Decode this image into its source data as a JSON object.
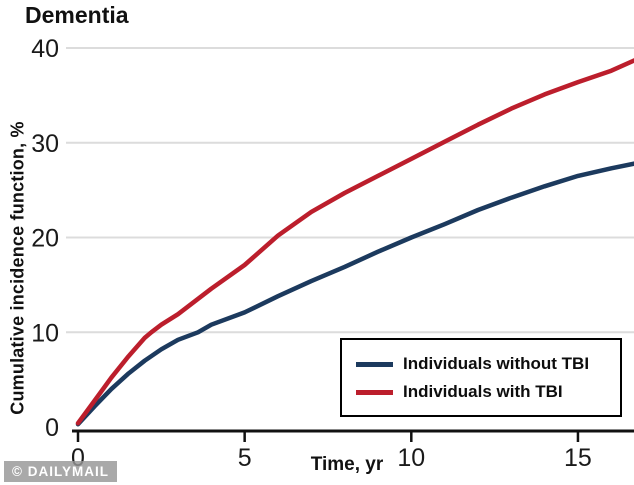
{
  "title": "Dementia",
  "watermark": "© DAILYMAIL",
  "axes": {
    "y_label": "Cumulative incidence function, %",
    "x_label": "Time, yr"
  },
  "legend": {
    "items": [
      {
        "label": "Individuals without TBI",
        "color": "#1c3a5e"
      },
      {
        "label": "Individuals with TBI",
        "color": "#bc1e2c"
      }
    ]
  },
  "colors": {
    "grid": "#dcdcdc",
    "axis": "#111111",
    "tick_text": "#1a1a1a",
    "background": "#ffffff"
  },
  "chart_data": {
    "type": "line",
    "title": "Dementia",
    "xlabel": "Time, yr",
    "ylabel": "Cumulative incidence function, %",
    "xlim": [
      0,
      16.7
    ],
    "ylim": [
      0,
      40
    ],
    "x_ticks": [
      0,
      5,
      10,
      15
    ],
    "y_ticks": [
      0,
      10,
      20,
      30,
      40
    ],
    "grid": "horizontal",
    "legend_position": "lower right",
    "series": [
      {
        "name": "Individuals without TBI",
        "color": "#1c3a5e",
        "points": [
          [
            0,
            0.3
          ],
          [
            0.5,
            2.2
          ],
          [
            1,
            4.0
          ],
          [
            1.5,
            5.6
          ],
          [
            2,
            7.0
          ],
          [
            2.5,
            8.2
          ],
          [
            3,
            9.2
          ],
          [
            3.6,
            10.0
          ],
          [
            4,
            10.8
          ],
          [
            5,
            12.1
          ],
          [
            6,
            13.8
          ],
          [
            7,
            15.4
          ],
          [
            8,
            16.9
          ],
          [
            9,
            18.5
          ],
          [
            10,
            20.0
          ],
          [
            11,
            21.4
          ],
          [
            12,
            22.9
          ],
          [
            13,
            24.2
          ],
          [
            14,
            25.4
          ],
          [
            15,
            26.5
          ],
          [
            16,
            27.3
          ],
          [
            16.7,
            27.8
          ]
        ]
      },
      {
        "name": "Individuals with TBI",
        "color": "#bc1e2c",
        "points": [
          [
            0,
            0.4
          ],
          [
            0.5,
            2.8
          ],
          [
            1,
            5.2
          ],
          [
            1.5,
            7.4
          ],
          [
            2,
            9.4
          ],
          [
            2.2,
            10.0
          ],
          [
            2.5,
            10.8
          ],
          [
            3,
            11.9
          ],
          [
            4,
            14.6
          ],
          [
            5,
            17.1
          ],
          [
            6,
            20.2
          ],
          [
            7,
            22.7
          ],
          [
            8,
            24.7
          ],
          [
            9,
            26.5
          ],
          [
            10,
            28.3
          ],
          [
            11,
            30.1
          ],
          [
            12,
            31.9
          ],
          [
            13,
            33.6
          ],
          [
            14,
            35.1
          ],
          [
            15,
            36.4
          ],
          [
            16,
            37.6
          ],
          [
            16.7,
            38.7
          ]
        ]
      }
    ]
  }
}
